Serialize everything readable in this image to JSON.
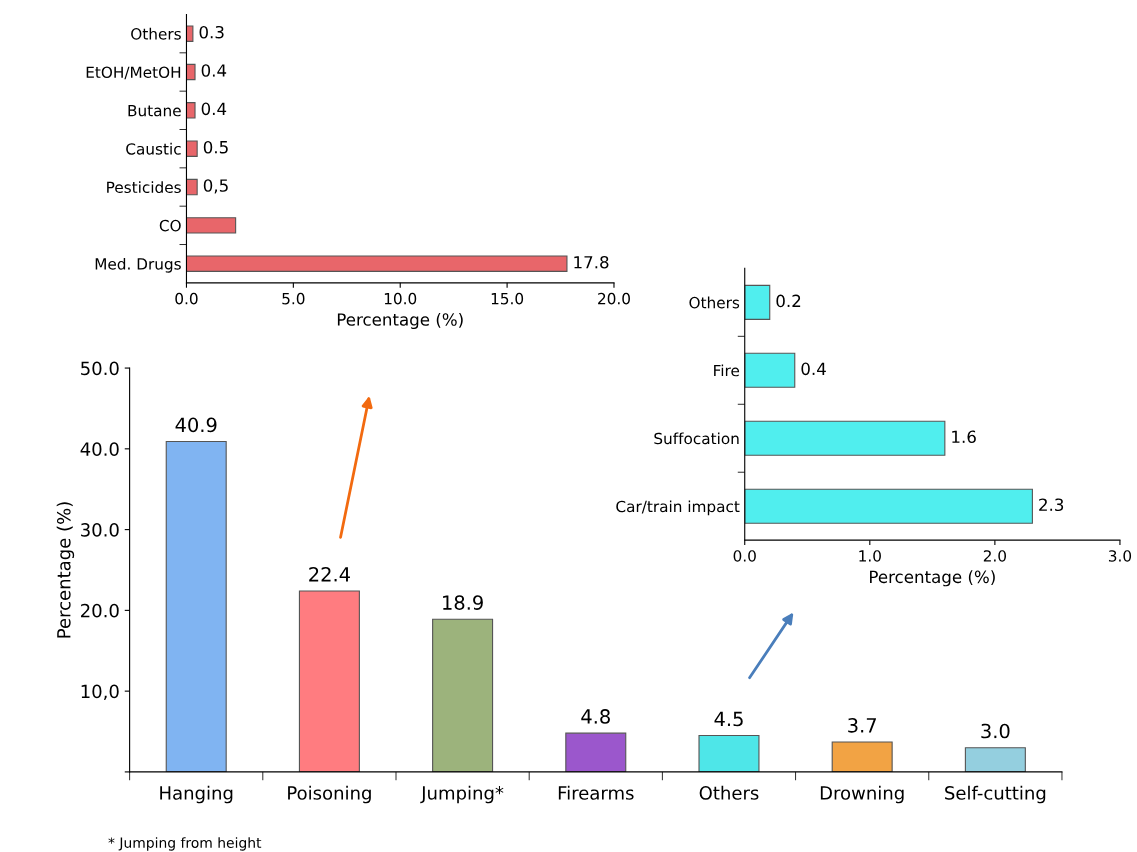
{
  "chart_data": [
    {
      "type": "bar",
      "orientation": "horizontal",
      "categories": [
        "Others",
        "EtOH/MetOH",
        "Butane",
        "Caustic",
        "Pesticides",
        "CO",
        "Med. Drugs"
      ],
      "values": [
        0.3,
        0.4,
        0.4,
        0.5,
        0.5,
        2.3,
        17.8
      ],
      "color": "#e8666a",
      "value_labels": [
        "0.3",
        "0.4",
        "0.4",
        "0.5",
        "0,5",
        null,
        "17.8"
      ],
      "xlabel": "Percentage (%)",
      "xlim": [
        0,
        20
      ],
      "xticks": [
        {
          "value": 0,
          "label": "0.0"
        },
        {
          "value": 5,
          "label": "5.0"
        },
        {
          "value": 10,
          "label": "10.0"
        },
        {
          "value": 15,
          "label": "15.0"
        },
        {
          "value": 20,
          "label": "20.0"
        }
      ],
      "grid": false
    },
    {
      "type": "bar",
      "categories": [
        "Hanging",
        "Poisoning",
        "Jumping*",
        "Firearms",
        "Others",
        "Drowning",
        "Self-cutting"
      ],
      "values": [
        40.9,
        22.4,
        18.9,
        4.8,
        4.5,
        3.7,
        3.0
      ],
      "colors": [
        "#80b4f2",
        "#ff7c80",
        "#9cb37c",
        "#9b57cc",
        "#4ee6e8",
        "#f2a344",
        "#94cfdf"
      ],
      "value_labels": [
        "40.9",
        "22.4",
        "18.9",
        "4.8",
        "4.5",
        "3.7",
        "3.0"
      ],
      "ylabel": "Percentage (%)",
      "ylim": [
        0,
        50
      ],
      "yticks": [
        {
          "value": 0,
          "label": null
        },
        {
          "value": 10,
          "label": "10,0"
        },
        {
          "value": 20,
          "label": "20.0"
        },
        {
          "value": 30,
          "label": "30.0"
        },
        {
          "value": 40,
          "label": "40.0"
        },
        {
          "value": 50,
          "label": "50.0"
        }
      ],
      "annotations": [
        "* Jumping from height"
      ],
      "grid": false
    },
    {
      "type": "bar",
      "orientation": "horizontal",
      "categories": [
        "Others",
        "Fire",
        "Suffocation",
        "Car/train impact"
      ],
      "values": [
        0.2,
        0.4,
        1.6,
        2.3
      ],
      "color": "#50eeee",
      "data_labels": true,
      "xlabel": "Percentage (%)",
      "xlim": [
        0,
        3
      ],
      "xticks": [
        {
          "value": 0,
          "label": "0.0"
        },
        {
          "value": 1,
          "label": "1.0"
        },
        {
          "value": 2,
          "label": "2.0"
        },
        {
          "value": 3,
          "label": "3.0"
        }
      ],
      "grid": false
    }
  ]
}
